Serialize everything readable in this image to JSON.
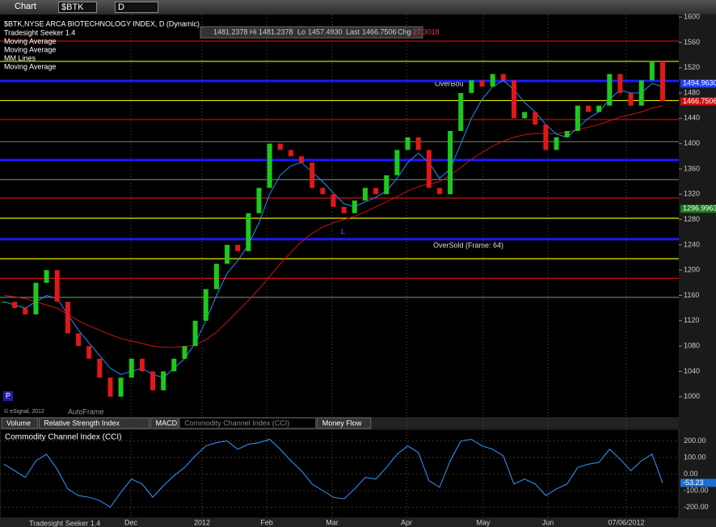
{
  "toolbar": {
    "title": "Chart",
    "symbol": "$BTK",
    "interval": "D"
  },
  "info_bar": {
    "open": "1481.2378",
    "high_label": "Hi",
    "high": "1481.2378",
    "low_label": "Lo",
    "low": "1457.4930",
    "last_label": "Last",
    "last": "1466.7506",
    "change_label": "Chg",
    "change": "-27.3018"
  },
  "chart_data": [
    {
      "type": "candlestick",
      "title": "$BTK,NYSE ARCA BIOTECHNOLOGY INDEX, D (Dynamic)",
      "legend": [
        "Tradesight Seeker 1.4",
        "Moving Average",
        "Moving Average",
        "MM Lines",
        "Moving Average"
      ],
      "values": [
        1150,
        1140,
        1130,
        1180,
        1200,
        1150,
        1100,
        1080,
        1060,
        1030,
        1000,
        1030,
        1060,
        1040,
        1010,
        1040,
        1060,
        1080,
        1120,
        1170,
        1210,
        1240,
        1230,
        1290,
        1330,
        1400,
        1390,
        1380,
        1370,
        1330,
        1320,
        1300,
        1290,
        1310,
        1330,
        1320,
        1350,
        1390,
        1410,
        1390,
        1330,
        1320,
        1420,
        1480,
        1500,
        1490,
        1510,
        1500,
        1440,
        1450,
        1430,
        1390,
        1410,
        1420,
        1460,
        1450,
        1460,
        1510,
        1480,
        1460,
        1500,
        1530,
        1467
      ],
      "series": [
        {
          "name": "Moving Average",
          "color": "#d01010",
          "values": [
            1160,
            1158,
            1155,
            1150,
            1145,
            1140,
            1130,
            1120,
            1112,
            1105,
            1098,
            1092,
            1088,
            1084,
            1080,
            1078,
            1078,
            1079,
            1082,
            1090,
            1102,
            1118,
            1135,
            1152,
            1170,
            1190,
            1210,
            1228,
            1245,
            1258,
            1268,
            1275,
            1280,
            1285,
            1292,
            1300,
            1308,
            1316,
            1325,
            1332,
            1336,
            1340,
            1350,
            1362,
            1375,
            1386,
            1396,
            1404,
            1410,
            1414,
            1416,
            1416,
            1416,
            1418,
            1422,
            1426,
            1430,
            1436,
            1442,
            1446,
            1450,
            1456,
            1460
          ]
        },
        {
          "name": "Moving Average",
          "color": "#1e90ff",
          "values": [
            1150,
            1145,
            1140,
            1150,
            1160,
            1155,
            1130,
            1105,
            1085,
            1065,
            1045,
            1035,
            1040,
            1045,
            1035,
            1030,
            1045,
            1060,
            1085,
            1120,
            1160,
            1195,
            1215,
            1240,
            1275,
            1320,
            1350,
            1365,
            1370,
            1355,
            1340,
            1322,
            1305,
            1300,
            1308,
            1315,
            1325,
            1345,
            1370,
            1385,
            1370,
            1345,
            1360,
            1400,
            1440,
            1470,
            1490,
            1500,
            1485,
            1465,
            1450,
            1430,
            1415,
            1410,
            1425,
            1440,
            1450,
            1470,
            1485,
            1480,
            1480,
            1495,
            1490
          ]
        }
      ],
      "levels": [
        {
          "value": 1562,
          "color": "#d01010"
        },
        {
          "value": 1530,
          "color": "#e8e800"
        },
        {
          "value": 1499,
          "color": "#1a1aff"
        },
        {
          "value": 1468,
          "color": "#e8e800"
        },
        {
          "value": 1438,
          "color": "#d01010"
        },
        {
          "value": 1403,
          "color": "#6a7a6a"
        },
        {
          "value": 1374,
          "color": "#1a1aff"
        },
        {
          "value": 1343,
          "color": "#6a7a6a"
        },
        {
          "value": 1314,
          "color": "#d01010"
        },
        {
          "value": 1282,
          "color": "#e8e800"
        },
        {
          "value": 1249,
          "color": "#1a1aff"
        },
        {
          "value": 1218,
          "color": "#e8e800"
        },
        {
          "value": 1187,
          "color": "#d01010"
        },
        {
          "value": 1157,
          "color": "#6a7a6a"
        }
      ],
      "markers": [
        {
          "value": 1494.963,
          "label": "1494.9630",
          "color": "#2040ff"
        },
        {
          "value": 1466.7506,
          "label": "1466.7506",
          "color": "#d01010"
        },
        {
          "value": 1296.9963,
          "label": "1296.9963",
          "color": "#1d7a1d"
        }
      ],
      "annotations": [
        "OverBou",
        "OverSold (Frame: 64)",
        "L",
        "AutoFrame",
        "© eSignal, 2012",
        "P"
      ],
      "ylim": [
        969,
        1604
      ],
      "yticks": [
        1000,
        1040,
        1080,
        1120,
        1160,
        1200,
        1240,
        1280,
        1320,
        1360,
        1400,
        1440,
        1480,
        1520,
        1560,
        1600
      ]
    },
    {
      "type": "line",
      "title": "Commodity Channel Index (CCI)",
      "color": "#3399ff",
      "values": [
        60,
        20,
        -20,
        80,
        120,
        30,
        -90,
        -130,
        -140,
        -160,
        -200,
        -110,
        -30,
        -60,
        -140,
        -70,
        -10,
        40,
        110,
        170,
        190,
        200,
        150,
        180,
        190,
        210,
        150,
        80,
        20,
        -60,
        -100,
        -140,
        -150,
        -90,
        -20,
        -30,
        40,
        120,
        170,
        130,
        -40,
        -80,
        80,
        200,
        210,
        170,
        150,
        110,
        -60,
        -30,
        -60,
        -130,
        -90,
        -60,
        40,
        60,
        70,
        150,
        90,
        20,
        80,
        120,
        -53.23
      ],
      "ylim": [
        -266,
        271
      ],
      "yticks": [
        {
          "value": 200,
          "label": "200.00"
        },
        {
          "value": 100,
          "label": "100.00"
        },
        {
          "value": 0,
          "label": "0.00"
        },
        {
          "value": -100,
          "label": "-100.00"
        },
        {
          "value": -200,
          "label": "-200.00"
        }
      ],
      "marker": -53.23
    }
  ],
  "tabs": [
    "Volume",
    "Relative Strength Index",
    "MACD",
    "Commodity Channel Index (CCI)",
    "Money Flow"
  ],
  "x_axis": [
    "Dec",
    "2012",
    "Feb",
    "Mar",
    "Apr",
    "May",
    "Jun",
    "07/06/2012"
  ],
  "footer": "Tradesight Seeker 1.4"
}
